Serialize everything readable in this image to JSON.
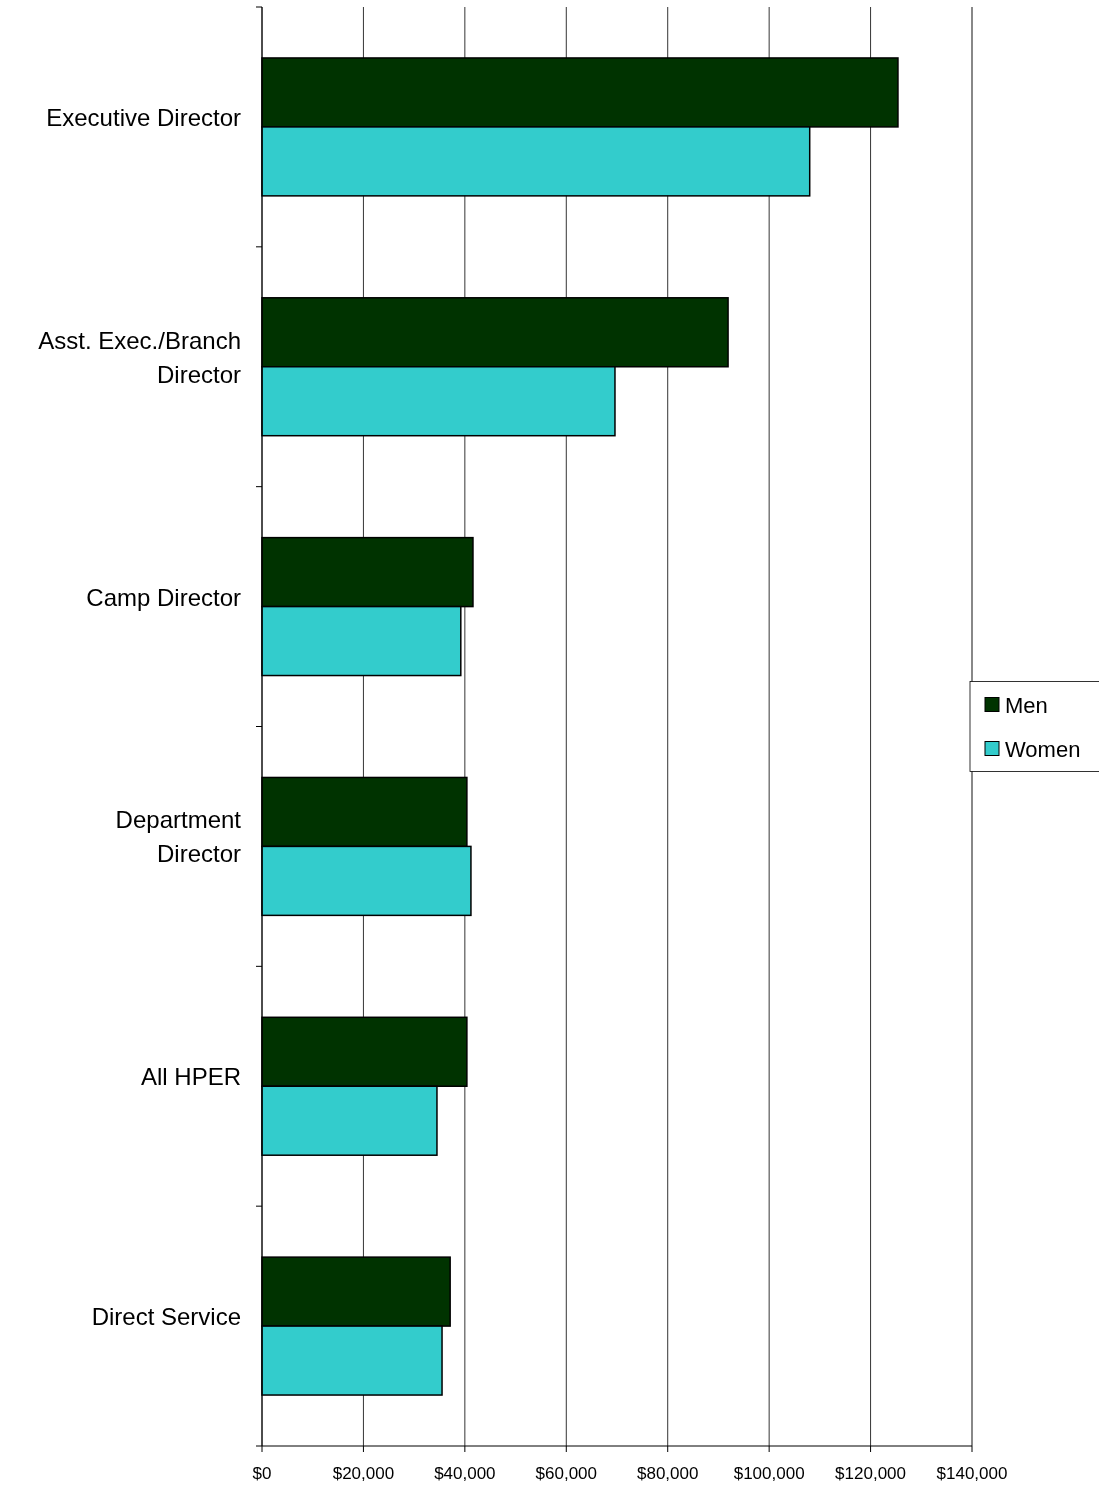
{
  "chart_data": {
    "type": "bar",
    "orientation": "horizontal",
    "categories": [
      "Executive Director",
      "Asst. Exec./Branch\nDirector",
      "Camp Director",
      "Department\nDirector",
      "All HPER",
      "Direct Service"
    ],
    "series": [
      {
        "name": "Men",
        "color": "#003300",
        "values": [
          125400,
          91900,
          41600,
          40400,
          40400,
          37100
        ]
      },
      {
        "name": "Women",
        "color": "#33cccc",
        "values": [
          108000,
          69600,
          39200,
          41200,
          34500,
          35500
        ]
      }
    ],
    "xlim": [
      0,
      140000
    ],
    "xticks": [
      {
        "value": 0,
        "label": "$0"
      },
      {
        "value": 20000,
        "label": "$20,000"
      },
      {
        "value": 40000,
        "label": "$40,000"
      },
      {
        "value": 60000,
        "label": "$60,000"
      },
      {
        "value": 80000,
        "label": "$80,000"
      },
      {
        "value": 100000,
        "label": "$100,000"
      },
      {
        "value": 120000,
        "label": "$120,000"
      },
      {
        "value": 140000,
        "label": "$140,000"
      }
    ],
    "grid": "x",
    "legend": "right"
  }
}
